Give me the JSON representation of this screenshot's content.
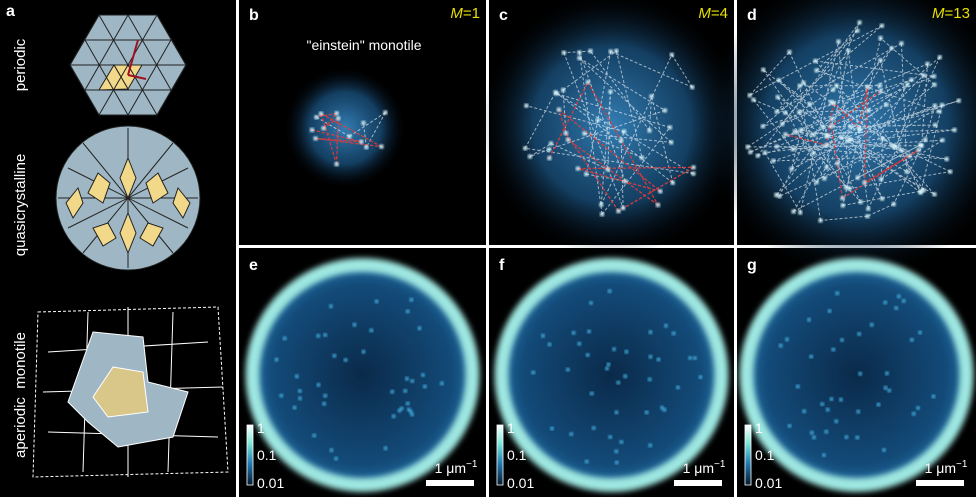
{
  "panel_a": {
    "label": "a",
    "rows": [
      "periodic",
      "quasicrystalline",
      "aperiodic  monotile"
    ]
  },
  "top_panels": [
    {
      "label": "b",
      "m_symbol": "M",
      "m_value": "=1",
      "caption": "\"einstein\" monotile"
    },
    {
      "label": "c",
      "m_symbol": "M",
      "m_value": "=4"
    },
    {
      "label": "d",
      "m_symbol": "M",
      "m_value": "=13"
    }
  ],
  "bottom_panels": [
    {
      "label": "e",
      "colorbar": [
        "1",
        "0.1",
        "0.01"
      ],
      "scale_bar": "1 μm",
      "scale_bar_exp": "−1"
    },
    {
      "label": "f",
      "colorbar": [
        "1",
        "0.1",
        "0.01"
      ],
      "scale_bar": "1 μm",
      "scale_bar_exp": "−1"
    },
    {
      "label": "g",
      "colorbar": [
        "1",
        "0.1",
        "0.01"
      ],
      "scale_bar": "1 μm",
      "scale_bar_exp": "−1"
    }
  ]
}
